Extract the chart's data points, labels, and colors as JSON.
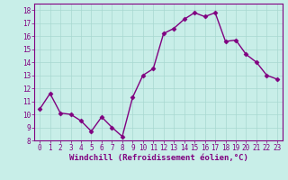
{
  "x": [
    0,
    1,
    2,
    3,
    4,
    5,
    6,
    7,
    8,
    9,
    10,
    11,
    12,
    13,
    14,
    15,
    16,
    17,
    18,
    19,
    20,
    21,
    22,
    23
  ],
  "y": [
    10.4,
    11.6,
    10.1,
    10.0,
    9.5,
    8.7,
    9.8,
    9.0,
    8.3,
    11.3,
    13.0,
    13.5,
    16.2,
    16.6,
    17.3,
    17.8,
    17.5,
    17.8,
    15.6,
    15.7,
    14.6,
    14.0,
    13.0,
    12.7
  ],
  "line_color": "#800080",
  "marker": "D",
  "marker_size": 2.5,
  "bg_color": "#c8eee8",
  "grid_color": "#a8d8d0",
  "xlabel": "Windchill (Refroidissement éolien,°C)",
  "xlabel_color": "#800080",
  "xlim": [
    -0.5,
    23.5
  ],
  "ylim": [
    8,
    18.5
  ],
  "yticks": [
    8,
    9,
    10,
    11,
    12,
    13,
    14,
    15,
    16,
    17,
    18
  ],
  "xticks": [
    0,
    1,
    2,
    3,
    4,
    5,
    6,
    7,
    8,
    9,
    10,
    11,
    12,
    13,
    14,
    15,
    16,
    17,
    18,
    19,
    20,
    21,
    22,
    23
  ],
  "tick_color": "#800080",
  "tick_label_size": 5.5,
  "xlabel_size": 6.5,
  "linewidth": 1.0
}
